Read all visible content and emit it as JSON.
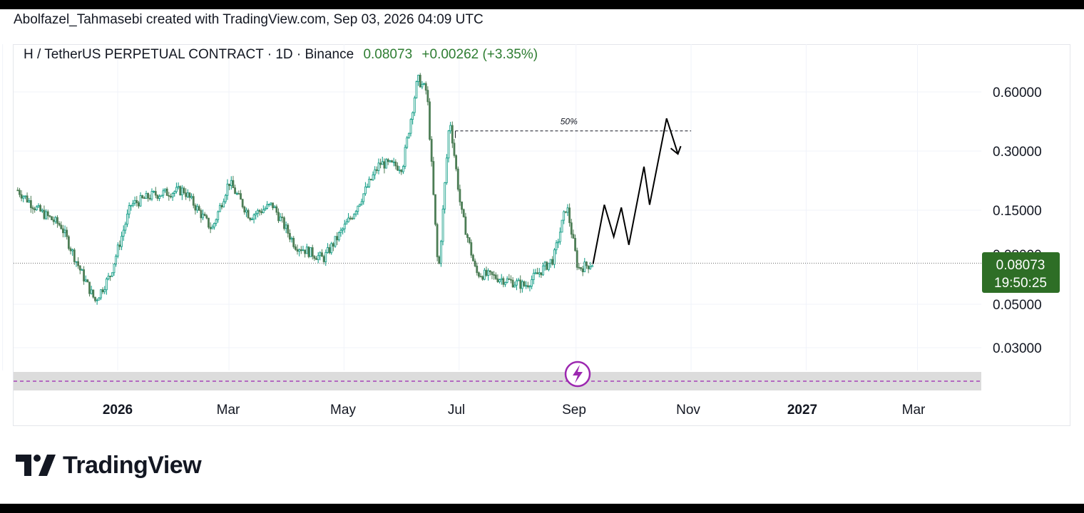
{
  "credit": "Abolfazel_Tahmasebi created with TradingView.com, Sep 03, 2026 04:09 UTC",
  "symbol": {
    "name": "H / TetherUS PERPETUAL CONTRACT · 1D · Binance",
    "last": "0.08073",
    "change": "+0.00262 (+3.35%)"
  },
  "price_tag": {
    "price": "0.08073",
    "countdown": "19:50:25"
  },
  "annotation": {
    "fib_label": "50%"
  },
  "brand": {
    "name": "TradingView"
  },
  "colors": {
    "up": "#089981",
    "down": "#4c7d55",
    "tag_bg": "#2e6e26",
    "marker": "#9c27b0"
  },
  "chart_data": {
    "type": "candlestick",
    "title": "H / TetherUS PERPETUAL CONTRACT · 1D · Binance",
    "y_scale": "log",
    "y_ticks": [
      "0.60000",
      "0.30000",
      "0.15000",
      "0.05000",
      "0.03000"
    ],
    "x_ticks": [
      "2026",
      "Mar",
      "May",
      "Jul",
      "Sep",
      "Nov",
      "2027",
      "Mar"
    ],
    "series": [
      {
        "values": [
          {
            "date": "2025-11-09",
            "close": 0.19
          },
          {
            "date": "2025-11-20",
            "close": 0.15
          },
          {
            "date": "2025-12-02",
            "close": 0.125
          },
          {
            "date": "2025-12-12",
            "close": 0.075
          },
          {
            "date": "2025-12-20",
            "close": 0.052
          },
          {
            "date": "2025-12-28",
            "close": 0.07
          },
          {
            "date": "2026-01-08",
            "close": 0.16
          },
          {
            "date": "2026-01-20",
            "close": 0.18
          },
          {
            "date": "2026-02-05",
            "close": 0.19
          },
          {
            "date": "2026-02-20",
            "close": 0.12
          },
          {
            "date": "2026-03-01",
            "close": 0.21
          },
          {
            "date": "2026-03-12",
            "close": 0.14
          },
          {
            "date": "2026-03-24",
            "close": 0.16
          },
          {
            "date": "2026-04-05",
            "close": 0.1
          },
          {
            "date": "2026-04-20",
            "close": 0.085
          },
          {
            "date": "2026-05-05",
            "close": 0.14
          },
          {
            "date": "2026-05-20",
            "close": 0.26
          },
          {
            "date": "2026-06-01",
            "close": 0.25
          },
          {
            "date": "2026-06-09",
            "close": 0.7
          },
          {
            "date": "2026-06-14",
            "close": 0.6
          },
          {
            "date": "2026-06-20",
            "close": 0.07
          },
          {
            "date": "2026-06-26",
            "close": 0.45
          },
          {
            "date": "2026-07-02",
            "close": 0.15
          },
          {
            "date": "2026-07-10",
            "close": 0.072
          },
          {
            "date": "2026-07-22",
            "close": 0.068
          },
          {
            "date": "2026-08-05",
            "close": 0.062
          },
          {
            "date": "2026-08-20",
            "close": 0.085
          },
          {
            "date": "2026-08-27",
            "close": 0.16
          },
          {
            "date": "2026-09-02",
            "close": 0.076
          },
          {
            "date": "2026-09-10",
            "close": 0.08073
          }
        ]
      }
    ],
    "projection": [
      {
        "date": "2026-09-10",
        "value": 0.08
      },
      {
        "date": "2026-09-16",
        "value": 0.16
      },
      {
        "date": "2026-09-21",
        "value": 0.11
      },
      {
        "date": "2026-09-25",
        "value": 0.155
      },
      {
        "date": "2026-09-29",
        "value": 0.1
      },
      {
        "date": "2026-10-07",
        "value": 0.25
      },
      {
        "date": "2026-10-10",
        "value": 0.16
      },
      {
        "date": "2026-10-19",
        "value": 0.44
      },
      {
        "date": "2026-10-25",
        "value": 0.29
      }
    ],
    "fib_level": {
      "label": "50%",
      "value": 0.38,
      "from": "2026-06-29",
      "to": "2026-11-01"
    },
    "current_price": 0.08073
  }
}
